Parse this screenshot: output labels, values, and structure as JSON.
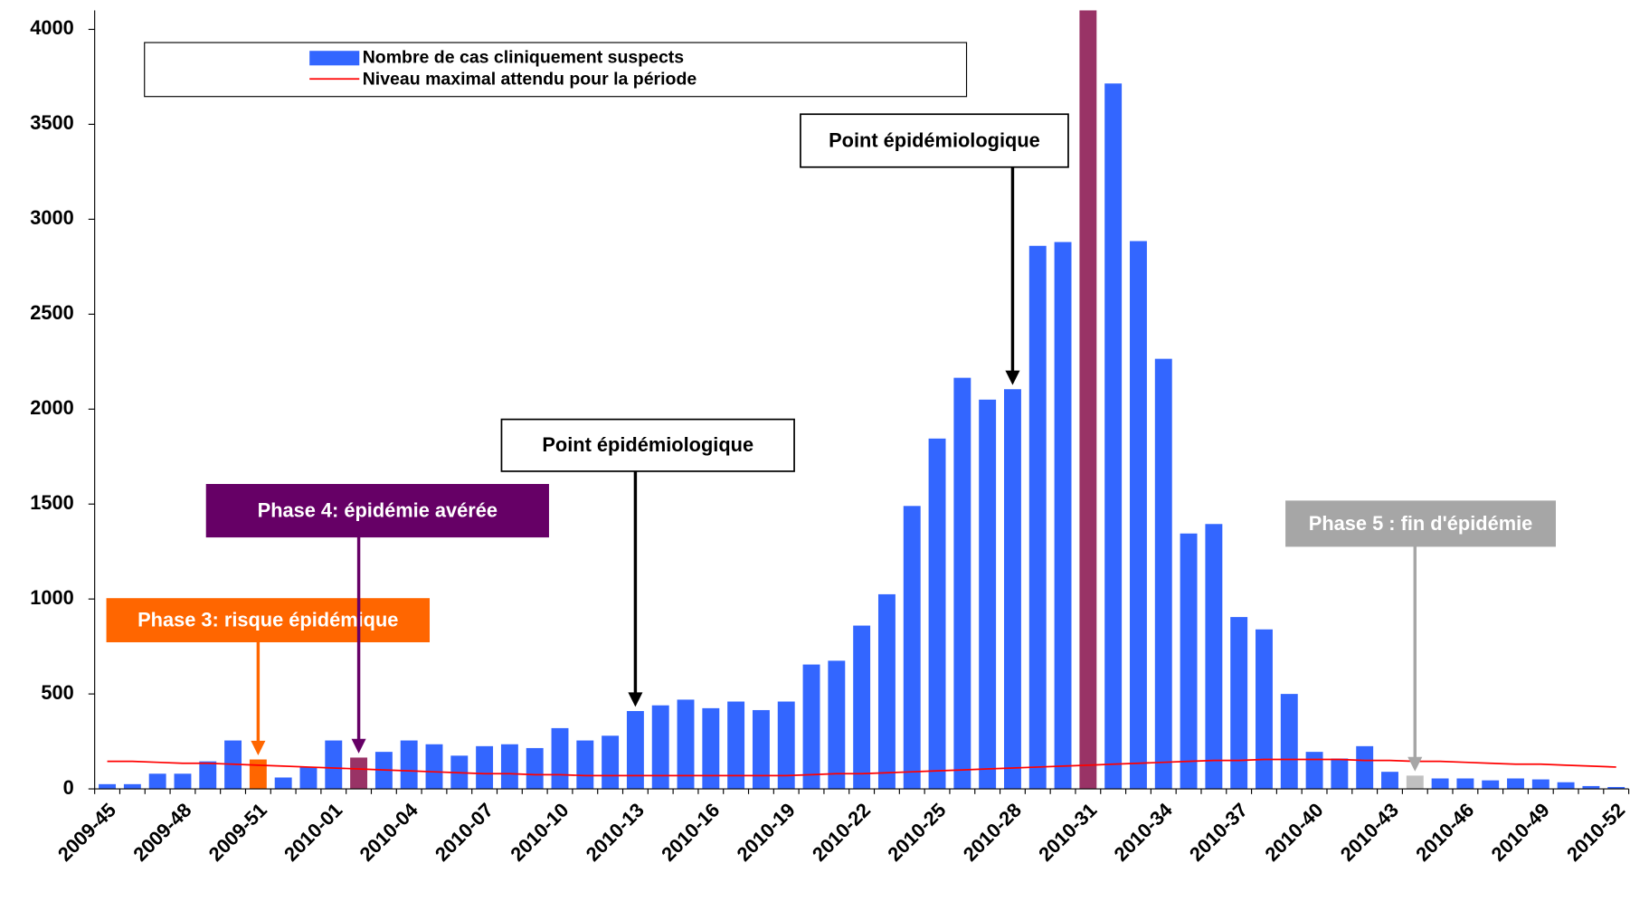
{
  "chart_data": {
    "type": "bar",
    "categories": [
      "2009-45",
      null,
      null,
      "2009-48",
      null,
      null,
      "2009-51",
      null,
      null,
      "2010-01",
      null,
      null,
      "2010-04",
      null,
      null,
      "2010-07",
      null,
      null,
      "2010-10",
      null,
      null,
      "2010-13",
      null,
      null,
      "2010-16",
      null,
      null,
      "2010-19",
      null,
      null,
      "2010-22",
      null,
      null,
      "2010-25",
      null,
      null,
      "2010-28",
      null,
      null,
      "2010-31",
      null,
      null,
      "2010-34",
      null,
      null,
      "2010-37",
      null,
      null,
      "2010-40",
      null,
      null,
      "2010-43",
      null,
      null,
      "2010-46",
      null,
      null,
      "2010-49",
      null,
      null,
      "2010-52"
    ],
    "series": [
      {
        "name": "Nombre de cas cliniquement suspects",
        "type": "bar",
        "color": "#3366ff",
        "colors": [
          "#3366ff",
          "#3366ff",
          "#3366ff",
          "#3366ff",
          "#3366ff",
          "#3366ff",
          "#ff6600",
          "#3366ff",
          "#3366ff",
          "#3366ff",
          "#993366",
          "#3366ff",
          "#3366ff",
          "#3366ff",
          "#3366ff",
          "#3366ff",
          "#3366ff",
          "#3366ff",
          "#3366ff",
          "#3366ff",
          "#3366ff",
          "#3366ff",
          "#3366ff",
          "#3366ff",
          "#3366ff",
          "#3366ff",
          "#3366ff",
          "#3366ff",
          "#3366ff",
          "#3366ff",
          "#3366ff",
          "#3366ff",
          "#3366ff",
          "#3366ff",
          "#3366ff",
          "#3366ff",
          "#3366ff",
          "#3366ff",
          "#3366ff",
          "#993366",
          "#3366ff",
          "#3366ff",
          "#3366ff",
          "#3366ff",
          "#3366ff",
          "#3366ff",
          "#3366ff",
          "#3366ff",
          "#3366ff",
          "#3366ff",
          "#3366ff",
          "#3366ff",
          "#c0c0c0",
          "#3366ff",
          "#3366ff",
          "#3366ff",
          "#3366ff",
          "#3366ff",
          "#3366ff",
          "#3366ff",
          "#3366ff"
        ],
        "values": [
          25,
          25,
          80,
          80,
          145,
          255,
          155,
          60,
          115,
          255,
          165,
          195,
          255,
          235,
          175,
          225,
          235,
          215,
          320,
          255,
          280,
          410,
          440,
          470,
          425,
          460,
          415,
          460,
          655,
          675,
          860,
          1025,
          1490,
          1845,
          2165,
          2050,
          2105,
          2860,
          2880,
          4300,
          3715,
          2885,
          2265,
          1345,
          1395,
          905,
          840,
          500,
          195,
          160,
          225,
          90,
          70,
          55,
          55,
          45,
          55,
          50,
          35,
          15,
          10
        ]
      },
      {
        "name": "Niveau maximal attendu pour la période",
        "type": "line",
        "color": "#ff0000",
        "values": [
          145,
          145,
          140,
          135,
          135,
          130,
          125,
          120,
          115,
          110,
          105,
          100,
          95,
          90,
          85,
          80,
          80,
          75,
          75,
          70,
          70,
          70,
          70,
          70,
          70,
          70,
          70,
          70,
          75,
          80,
          80,
          85,
          90,
          95,
          100,
          105,
          110,
          115,
          120,
          125,
          130,
          135,
          140,
          145,
          150,
          150,
          155,
          155,
          155,
          155,
          150,
          150,
          145,
          145,
          140,
          135,
          130,
          130,
          125,
          120,
          115
        ]
      }
    ],
    "ylim": [
      0,
      4100
    ],
    "yticks": [
      0,
      500,
      1000,
      1500,
      2000,
      2500,
      3000,
      3500,
      4000
    ],
    "legend": "top-left",
    "annotations": [
      {
        "text": "Phase 3:  risque épidémique",
        "color": "#ff6600",
        "text_color": "#ffffff"
      },
      {
        "text": "Phase 4: épidémie avérée",
        "color": "#660066",
        "text_color": "#ffffff"
      },
      {
        "text": "Point épidémiologique",
        "color": "#ffffff",
        "text_color": "#000000"
      },
      {
        "text": "Point épidémiologique",
        "color": "#ffffff",
        "text_color": "#000000"
      },
      {
        "text": "Phase 5 : fin d'épidémie",
        "color": "#a6a6a6",
        "text_color": "#ffffff"
      }
    ]
  }
}
